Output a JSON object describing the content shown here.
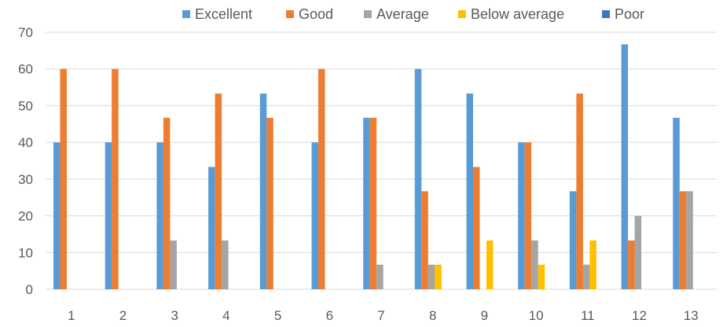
{
  "chart_data": {
    "type": "bar",
    "categories": [
      "1",
      "2",
      "3",
      "4",
      "5",
      "6",
      "7",
      "8",
      "9",
      "10",
      "11",
      "12",
      "13"
    ],
    "series": [
      {
        "name": "Excellent",
        "color": "#5b9bd5",
        "values": [
          40,
          40,
          40,
          33.3,
          53.3,
          40,
          46.7,
          60,
          53.3,
          40,
          26.7,
          66.7,
          46.7
        ]
      },
      {
        "name": "Good",
        "color": "#ed7d31",
        "values": [
          60,
          60,
          46.7,
          53.3,
          46.7,
          60,
          46.7,
          26.7,
          33.3,
          40,
          53.3,
          13.3,
          26.7
        ]
      },
      {
        "name": "Average",
        "color": "#a5a5a5",
        "values": [
          0,
          0,
          13.3,
          13.3,
          0,
          0,
          6.7,
          6.7,
          0,
          13.3,
          6.7,
          20,
          26.7
        ]
      },
      {
        "name": "Below average",
        "color": "#ffc000",
        "values": [
          0,
          0,
          0,
          0,
          0,
          0,
          0,
          6.7,
          13.3,
          6.7,
          13.3,
          0,
          0
        ]
      },
      {
        "name": "Poor",
        "color": "#4472c4",
        "values": [
          0,
          0,
          0,
          0,
          0,
          0,
          0,
          0,
          0,
          0,
          0,
          0,
          0
        ]
      }
    ],
    "y_ticks": [
      "0",
      "10",
      "20",
      "30",
      "40",
      "50",
      "60",
      "70"
    ],
    "ylim": [
      0,
      70
    ],
    "grid": true,
    "legend_position": "top"
  }
}
